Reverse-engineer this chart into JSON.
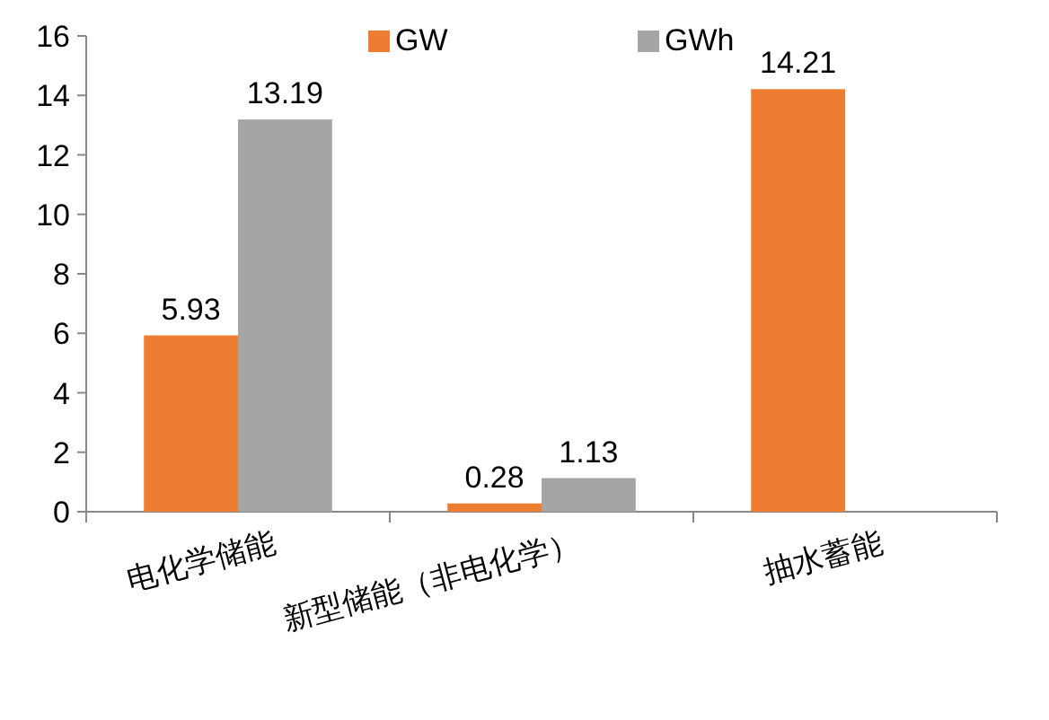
{
  "chart_data": {
    "type": "bar",
    "categories": [
      "电化学储能",
      "新型储能（非电化学）",
      "抽水蓄能"
    ],
    "series": [
      {
        "name": "GW",
        "color": "#ed7d31",
        "values": [
          5.93,
          0.28,
          14.21
        ]
      },
      {
        "name": "GWh",
        "color": "#a5a5a5",
        "values": [
          13.19,
          1.13,
          null
        ]
      }
    ],
    "ylim": [
      0,
      16
    ],
    "yticks": [
      0,
      2,
      4,
      6,
      8,
      10,
      12,
      14,
      16
    ],
    "data_labels": true,
    "legend": "top",
    "grid": false
  }
}
